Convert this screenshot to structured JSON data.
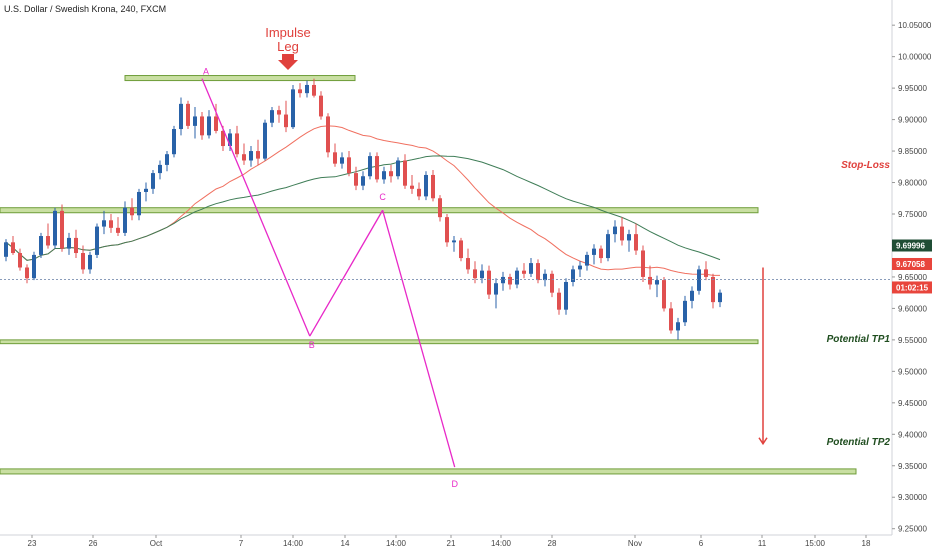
{
  "header": {
    "title": "U.S. Dollar / Swedish Krona, 240, FXCM"
  },
  "colors": {
    "up": "#2962a8",
    "down": "#e05050",
    "zone_fill": "#c9dfa2",
    "zone_edge": "#6f9d3a",
    "pattern": "#e829c8",
    "ma_red": "#f07060",
    "ma_green": "#3f7d57",
    "arrow": "#e0413d",
    "price_dark": "#1f4d35",
    "price_red": "#e8453c"
  },
  "chart_data": {
    "type": "candlestick",
    "title": "U.S. Dollar / Swedish Krona, 240, FXCM",
    "ylim": [
      9.24,
      10.09
    ],
    "y_ticks": [
      "10.05000",
      "10.00000",
      "9.95000",
      "9.90000",
      "9.85000",
      "9.80000",
      "9.75000",
      "9.70000",
      "9.65000",
      "9.60000",
      "9.55000",
      "9.50000",
      "9.45000",
      "9.40000",
      "9.35000",
      "9.30000",
      "9.25000"
    ],
    "x_ticks": [
      "23",
      "26",
      "Oct",
      "7",
      "14:00",
      "14",
      "14:00",
      "21",
      "14:00",
      "28",
      "Nov",
      "6",
      "11",
      "15:00",
      "18"
    ],
    "price_labels": {
      "last": "9.69996",
      "level": "9.67058",
      "countdown": "01:02:15"
    },
    "annotations": {
      "impulse": [
        "Impulse",
        "Leg"
      ],
      "points": [
        "A",
        "B",
        "C",
        "D"
      ],
      "stop_loss": "Stop-Loss",
      "tp1": "Potential TP1",
      "tp2": "Potential TP2"
    },
    "zones": [
      {
        "name": "top",
        "from": 9.962,
        "to": 9.97
      },
      {
        "name": "middle",
        "from": 9.752,
        "to": 9.76
      },
      {
        "name": "tp1",
        "from": 9.544,
        "to": 9.55
      },
      {
        "name": "tp2",
        "from": 9.337,
        "to": 9.345
      }
    ],
    "pattern_points": [
      {
        "label": "A",
        "x": 28.0,
        "y": 9.965
      },
      {
        "label": "B",
        "x": 43.4,
        "y": 9.556
      },
      {
        "label": "C",
        "x": 53.8,
        "y": 9.756
      },
      {
        "label": "D",
        "x": 64.1,
        "y": 9.348
      }
    ],
    "candles": [
      [
        0.0,
        9.682,
        9.71,
        9.675,
        9.705
      ],
      [
        1.0,
        9.705,
        9.715,
        9.685,
        9.688
      ],
      [
        2.0,
        9.688,
        9.695,
        9.66,
        9.665
      ],
      [
        3.0,
        9.665,
        9.67,
        9.64,
        9.648
      ],
      [
        4.0,
        9.648,
        9.69,
        9.645,
        9.685
      ],
      [
        5.0,
        9.685,
        9.72,
        9.68,
        9.715
      ],
      [
        6.0,
        9.715,
        9.735,
        9.695,
        9.7
      ],
      [
        7.0,
        9.7,
        9.76,
        9.695,
        9.755
      ],
      [
        8.0,
        9.755,
        9.765,
        9.69,
        9.695
      ],
      [
        9.0,
        9.695,
        9.72,
        9.685,
        9.712
      ],
      [
        10.0,
        9.712,
        9.725,
        9.68,
        9.688
      ],
      [
        11.0,
        9.688,
        9.7,
        9.655,
        9.662
      ],
      [
        12.0,
        9.662,
        9.69,
        9.655,
        9.685
      ],
      [
        13.0,
        9.685,
        9.735,
        9.68,
        9.73
      ],
      [
        14.0,
        9.73,
        9.755,
        9.718,
        9.74
      ],
      [
        15.0,
        9.74,
        9.75,
        9.72,
        9.728
      ],
      [
        16.0,
        9.728,
        9.745,
        9.715,
        9.72
      ],
      [
        17.0,
        9.72,
        9.77,
        9.715,
        9.76
      ],
      [
        18.0,
        9.76,
        9.775,
        9.74,
        9.748
      ],
      [
        19.0,
        9.748,
        9.79,
        9.74,
        9.785
      ],
      [
        20.0,
        9.785,
        9.8,
        9.77,
        9.79
      ],
      [
        21.0,
        9.79,
        9.82,
        9.782,
        9.815
      ],
      [
        22.0,
        9.815,
        9.835,
        9.805,
        9.828
      ],
      [
        23.0,
        9.828,
        9.85,
        9.818,
        9.845
      ],
      [
        24.0,
        9.845,
        9.89,
        9.84,
        9.885
      ],
      [
        25.0,
        9.885,
        9.935,
        9.875,
        9.925
      ],
      [
        26.0,
        9.925,
        9.93,
        9.885,
        9.89
      ],
      [
        27.0,
        9.89,
        9.92,
        9.87,
        9.905
      ],
      [
        28.0,
        9.905,
        9.912,
        9.868,
        9.875
      ],
      [
        29.0,
        9.875,
        9.915,
        9.87,
        9.905
      ],
      [
        30.0,
        9.905,
        9.925,
        9.878,
        9.882
      ],
      [
        31.0,
        9.882,
        9.89,
        9.85,
        9.858
      ],
      [
        32.0,
        9.858,
        9.885,
        9.85,
        9.878
      ],
      [
        33.0,
        9.878,
        9.89,
        9.84,
        9.845
      ],
      [
        34.0,
        9.845,
        9.862,
        9.828,
        9.835
      ],
      [
        35.0,
        9.835,
        9.858,
        9.825,
        9.85
      ],
      [
        36.0,
        9.85,
        9.868,
        9.828,
        9.838
      ],
      [
        37.0,
        9.838,
        9.9,
        9.835,
        9.895
      ],
      [
        38.0,
        9.895,
        9.92,
        9.888,
        9.915
      ],
      [
        39.0,
        9.915,
        9.922,
        9.895,
        9.908
      ],
      [
        40.0,
        9.908,
        9.93,
        9.88,
        9.888
      ],
      [
        41.0,
        9.888,
        9.955,
        9.885,
        9.948
      ],
      [
        42.0,
        9.948,
        9.958,
        9.935,
        9.942
      ],
      [
        43.0,
        9.942,
        9.962,
        9.935,
        9.955
      ],
      [
        44.0,
        9.955,
        9.965,
        9.935,
        9.938
      ],
      [
        45.0,
        9.938,
        9.945,
        9.9,
        9.905
      ],
      [
        46.0,
        9.905,
        9.91,
        9.84,
        9.848
      ],
      [
        47.0,
        9.848,
        9.862,
        9.825,
        9.83
      ],
      [
        48.0,
        9.83,
        9.848,
        9.822,
        9.84
      ],
      [
        49.0,
        9.84,
        9.85,
        9.81,
        9.815
      ],
      [
        50.0,
        9.815,
        9.825,
        9.788,
        9.795
      ],
      [
        51.0,
        9.795,
        9.818,
        9.788,
        9.81
      ],
      [
        52.0,
        9.81,
        9.848,
        9.805,
        9.842
      ],
      [
        53.0,
        9.842,
        9.848,
        9.8,
        9.805
      ],
      [
        54.0,
        9.805,
        9.825,
        9.798,
        9.818
      ],
      [
        55.0,
        9.818,
        9.828,
        9.8,
        9.81
      ],
      [
        56.0,
        9.81,
        9.84,
        9.805,
        9.835
      ],
      [
        57.0,
        9.835,
        9.845,
        9.79,
        9.795
      ],
      [
        58.0,
        9.795,
        9.812,
        9.782,
        9.79
      ],
      [
        59.0,
        9.79,
        9.8,
        9.772,
        9.778
      ],
      [
        60.0,
        9.778,
        9.818,
        9.772,
        9.812
      ],
      [
        61.0,
        9.812,
        9.82,
        9.77,
        9.775
      ],
      [
        62.0,
        9.775,
        9.78,
        9.738,
        9.745
      ],
      [
        63.0,
        9.745,
        9.75,
        9.698,
        9.705
      ],
      [
        64.0,
        9.705,
        9.715,
        9.69,
        9.708
      ],
      [
        65.0,
        9.708,
        9.712,
        9.675,
        9.68
      ],
      [
        66.0,
        9.68,
        9.695,
        9.655,
        9.662
      ],
      [
        67.0,
        9.662,
        9.675,
        9.64,
        9.648
      ],
      [
        68.0,
        9.648,
        9.67,
        9.64,
        9.66
      ],
      [
        69.0,
        9.66,
        9.668,
        9.615,
        9.622
      ],
      [
        70.0,
        9.622,
        9.648,
        9.6,
        9.64
      ],
      [
        71.0,
        9.64,
        9.658,
        9.628,
        9.65
      ],
      [
        72.0,
        9.65,
        9.655,
        9.63,
        9.638
      ],
      [
        73.0,
        9.638,
        9.665,
        9.632,
        9.66
      ],
      [
        74.0,
        9.66,
        9.672,
        9.648,
        9.655
      ],
      [
        75.0,
        9.655,
        9.68,
        9.65,
        9.672
      ],
      [
        76.0,
        9.672,
        9.678,
        9.64,
        9.645
      ],
      [
        77.0,
        9.645,
        9.662,
        9.635,
        9.655
      ],
      [
        78.0,
        9.655,
        9.66,
        9.618,
        9.625
      ],
      [
        79.0,
        9.625,
        9.632,
        9.59,
        9.598
      ],
      [
        80.0,
        9.598,
        9.648,
        9.59,
        9.642
      ],
      [
        81.0,
        9.642,
        9.668,
        9.635,
        9.662
      ],
      [
        82.0,
        9.662,
        9.675,
        9.65,
        9.668
      ],
      [
        83.0,
        9.668,
        9.69,
        9.66,
        9.685
      ],
      [
        84.0,
        9.685,
        9.702,
        9.67,
        9.695
      ],
      [
        85.0,
        9.695,
        9.7,
        9.672,
        9.68
      ],
      [
        86.0,
        9.68,
        9.725,
        9.675,
        9.718
      ],
      [
        87.0,
        9.718,
        9.74,
        9.705,
        9.73
      ],
      [
        88.0,
        9.73,
        9.745,
        9.7,
        9.708
      ],
      [
        89.0,
        9.708,
        9.725,
        9.69,
        9.718
      ],
      [
        90.0,
        9.718,
        9.735,
        9.685,
        9.692
      ],
      [
        91.0,
        9.692,
        9.7,
        9.642,
        9.65
      ],
      [
        92.0,
        9.65,
        9.668,
        9.63,
        9.638
      ],
      [
        93.0,
        9.638,
        9.652,
        9.618,
        9.645
      ],
      [
        94.0,
        9.645,
        9.65,
        9.595,
        9.6
      ],
      [
        95.0,
        9.6,
        9.61,
        9.56,
        9.565
      ],
      [
        96.0,
        9.565,
        9.585,
        9.55,
        9.578
      ],
      [
        97.0,
        9.578,
        9.62,
        9.572,
        9.612
      ],
      [
        98.0,
        9.612,
        9.635,
        9.6,
        9.628
      ],
      [
        99.0,
        9.628,
        9.668,
        9.622,
        9.662
      ],
      [
        100.0,
        9.662,
        9.675,
        9.645,
        9.65
      ],
      [
        101.0,
        9.65,
        9.655,
        9.6,
        9.61
      ],
      [
        102.0,
        9.61,
        9.63,
        9.602,
        9.625
      ]
    ]
  }
}
